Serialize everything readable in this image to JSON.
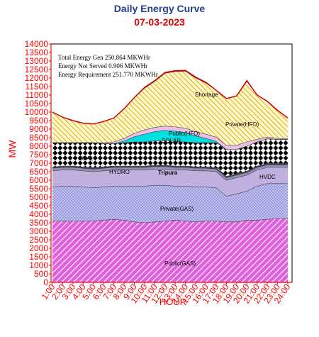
{
  "chart_data": {
    "type": "area",
    "title": "Daily Energy Curve",
    "subtitle": "07-03-2023",
    "xlabel": "HOUR",
    "ylabel": "MW",
    "ylim": [
      0,
      14000
    ],
    "y_ticks": [
      0,
      500,
      1000,
      1500,
      2000,
      2500,
      3000,
      3500,
      4000,
      4500,
      5000,
      5500,
      6000,
      6500,
      7000,
      7500,
      8000,
      8500,
      9000,
      9500,
      10000,
      10500,
      11000,
      11500,
      12000,
      12500,
      13000,
      13500,
      14000
    ],
    "categories": [
      "1:00",
      "2:00",
      "3:00",
      "4:00",
      "5:00",
      "6:00",
      "7:00",
      "8:00",
      "9:00",
      "10:00",
      "11:00",
      "12:00",
      "13:00",
      "14:00",
      "15:00",
      "16:00",
      "17:00",
      "18:00",
      "19:00",
      "20:00",
      "21:00",
      "22:00",
      "23:00",
      "24:00"
    ],
    "annotations": [
      "Total Energy Gen 250.864 MKWHr",
      "Energy Not Served  0.906 MKWHr",
      "Energy Requirement      251.770 MKWHr"
    ],
    "series": [
      {
        "name": "Public(GAS)",
        "color": "#e060e0",
        "values": [
          3600,
          3600,
          3600,
          3600,
          3600,
          3650,
          3700,
          3650,
          3550,
          3500,
          3550,
          3600,
          3650,
          3600,
          3550,
          3600,
          3600,
          3550,
          3550,
          3650,
          3650,
          3700,
          3750,
          3750
        ]
      },
      {
        "name": "Private(GAS)",
        "color": "#c8c8f4",
        "values": [
          2000,
          2050,
          2050,
          2000,
          1950,
          1950,
          1950,
          2000,
          2100,
          2150,
          2150,
          2100,
          2000,
          2050,
          2050,
          2000,
          1950,
          1500,
          1650,
          1700,
          2000,
          2100,
          2050,
          2050
        ]
      },
      {
        "name": "HVDC",
        "color": "#c0b0e0",
        "values": [
          950,
          950,
          950,
          950,
          950,
          950,
          950,
          950,
          950,
          950,
          950,
          950,
          950,
          950,
          950,
          950,
          950,
          950,
          950,
          950,
          950,
          950,
          950,
          950
        ]
      },
      {
        "name": "Tripura",
        "color": "#9090b8",
        "values": [
          150,
          150,
          150,
          150,
          150,
          150,
          150,
          150,
          150,
          150,
          150,
          150,
          150,
          150,
          150,
          150,
          150,
          150,
          150,
          150,
          150,
          150,
          150,
          150
        ]
      },
      {
        "name": "HYDRO",
        "color": "#404050",
        "values": [
          80,
          80,
          80,
          80,
          80,
          80,
          80,
          80,
          80,
          80,
          80,
          80,
          80,
          80,
          80,
          80,
          80,
          80,
          80,
          80,
          80,
          80,
          80,
          80
        ]
      },
      {
        "name": "COAL",
        "color": "#000000",
        "values": [
          1420,
          1370,
          1370,
          1420,
          1470,
          1370,
          1320,
          1370,
          1420,
          1420,
          1420,
          1450,
          1450,
          1420,
          1420,
          1420,
          1470,
          1570,
          1420,
          1470,
          1420,
          1450,
          1420,
          1420
        ]
      },
      {
        "name": "SOLAR",
        "color": "#00e0e0",
        "values": [
          0,
          0,
          0,
          0,
          0,
          0,
          0,
          100,
          300,
          450,
          550,
          600,
          600,
          550,
          400,
          250,
          80,
          0,
          0,
          0,
          0,
          0,
          0,
          0
        ]
      },
      {
        "name": "Public(HFO)",
        "color": "#e8c0e8",
        "values": [
          0,
          0,
          0,
          0,
          0,
          50,
          100,
          150,
          200,
          250,
          250,
          250,
          250,
          250,
          250,
          250,
          250,
          250,
          250,
          250,
          150,
          100,
          50,
          50
        ]
      },
      {
        "name": "Private(HFO)",
        "color": "#f8d850",
        "values": [
          1800,
          1500,
          1300,
          1150,
          1100,
          1250,
          1400,
          1750,
          2100,
          2450,
          2700,
          3100,
          3250,
          3350,
          3150,
          3000,
          2750,
          2750,
          2900,
          3550,
          2600,
          2100,
          1650,
          1200
        ]
      },
      {
        "name": "Shortage",
        "color": "#ff0000",
        "values": [
          0,
          0,
          0,
          0,
          0,
          0,
          0,
          0,
          0,
          50,
          50,
          50,
          50,
          50,
          50,
          50,
          0,
          0,
          0,
          50,
          0,
          0,
          0,
          0
        ]
      }
    ]
  }
}
